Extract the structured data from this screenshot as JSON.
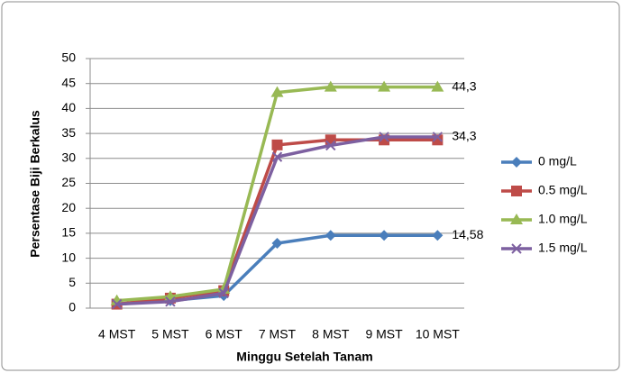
{
  "chart_data": {
    "type": "line",
    "categories": [
      "4 MST",
      "5 MST",
      "6 MST",
      "7 MST",
      "8 MST",
      "9 MST",
      "10 MST"
    ],
    "x_label": "Minggu Setelah Tanam",
    "y_label": "Persentase Biji Berkalus",
    "ylim": [
      0,
      50
    ],
    "yticks": [
      0,
      5,
      10,
      15,
      20,
      25,
      30,
      35,
      40,
      45,
      50
    ],
    "grid": true,
    "legend": "right",
    "series": [
      {
        "name": "0 mg/L",
        "color": "#4a7ebb",
        "marker": "diamond",
        "values": [
          0.8,
          1.5,
          2.5,
          13,
          14.58,
          14.58,
          14.58
        ],
        "value_labels": [
          null,
          null,
          null,
          null,
          null,
          null,
          "14,58"
        ]
      },
      {
        "name": "0.5 mg/L",
        "color": "#be4b48",
        "marker": "square",
        "values": [
          0.8,
          2.0,
          3.5,
          32.7,
          33.7,
          33.7,
          33.7
        ]
      },
      {
        "name": "1.0 mg/L",
        "color": "#98b954",
        "marker": "triangle",
        "values": [
          1.5,
          2.3,
          3.8,
          43.2,
          44.3,
          44.3,
          44.3
        ],
        "value_labels": [
          null,
          null,
          null,
          null,
          null,
          null,
          "44,3"
        ]
      },
      {
        "name": "1.5 mg/L",
        "color": "#7d60a0",
        "marker": "x",
        "values": [
          0.8,
          1.3,
          3.0,
          30.3,
          32.6,
          34.3,
          34.3
        ],
        "value_labels": [
          null,
          null,
          null,
          null,
          null,
          null,
          "34,3"
        ]
      }
    ]
  }
}
